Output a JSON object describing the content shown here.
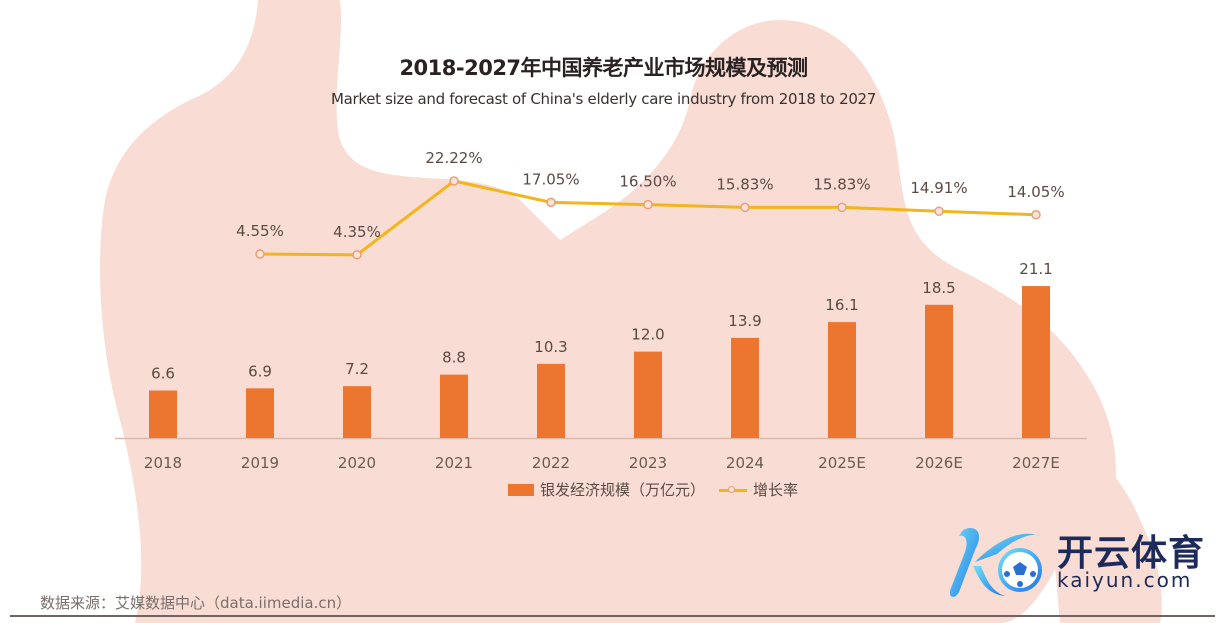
{
  "chart_data": {
    "type": "bar",
    "title": "2018-2027年中国养老产业市场规模及预测",
    "subtitle": "Market size and forecast of China's elderly care industry from 2018 to 2027",
    "categories": [
      "2018",
      "2019",
      "2020",
      "2021",
      "2022",
      "2023",
      "2024",
      "2025E",
      "2026E",
      "2027E"
    ],
    "series": [
      {
        "name": "银发经济规模（万亿元）",
        "type": "bar",
        "color": "#ec7630",
        "values": [
          6.6,
          6.9,
          7.2,
          8.8,
          10.3,
          12.0,
          13.9,
          16.1,
          18.5,
          21.1
        ],
        "labels": [
          "6.6",
          "6.9",
          "7.2",
          "8.8",
          "10.3",
          "12.0",
          "13.9",
          "16.1",
          "18.5",
          "21.1"
        ]
      },
      {
        "name": "增长率",
        "type": "line",
        "color": "#f2b51b",
        "values": [
          null,
          4.55,
          4.35,
          22.22,
          17.05,
          16.5,
          15.83,
          15.83,
          14.91,
          14.05
        ],
        "labels": [
          "",
          "4.55%",
          "4.35%",
          "22.22%",
          "17.05%",
          "16.50%",
          "15.83%",
          "15.83%",
          "14.91%",
          "14.05%"
        ]
      }
    ],
    "xlabel": "",
    "ylabel": "",
    "ylim": [
      0,
      25
    ],
    "y2lim": [
      0,
      25
    ],
    "grid": false,
    "legend": "bottom-center"
  },
  "source": "数据来源：艾媒数据中心（data.iimedia.cn）",
  "watermark": {
    "name_cn": "开云体育",
    "name_en": "kaiyun.com"
  },
  "colors": {
    "silhouette": "#f9ddd4",
    "bar": "#ec7630",
    "line": "#f2b51b",
    "marker_stroke": "#e6a07a"
  }
}
